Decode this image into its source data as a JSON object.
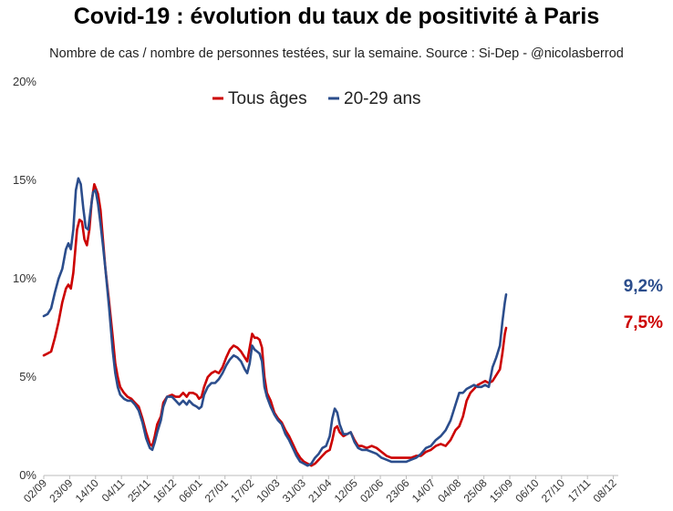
{
  "title": "Covid-19 : évolution du taux de positivité à Paris",
  "subtitle": "Nombre de cas / nombre de personnes testées, sur la semaine. Source : Si-Dep - @nicolasberrod",
  "chart_data": {
    "type": "line",
    "title": "Covid-19 : évolution du taux de positivité à Paris",
    "subtitle": "Nombre de cas / nombre de personnes testées, sur la semaine. Source : Si-Dep - @nicolasberrod",
    "xlabel": "",
    "ylabel": "",
    "ylim": [
      0,
      20
    ],
    "xlim": [
      0,
      466
    ],
    "grid": false,
    "legend_position": "top-center",
    "y_ticks": [
      {
        "value": 0,
        "label": "0%"
      },
      {
        "value": 5,
        "label": "5%"
      },
      {
        "value": 10,
        "label": "10%"
      },
      {
        "value": 15,
        "label": "15%"
      },
      {
        "value": 20,
        "label": "20%"
      }
    ],
    "x_ticks": [
      {
        "day": 0,
        "label": "02/09"
      },
      {
        "day": 21,
        "label": "23/09"
      },
      {
        "day": 42,
        "label": "14/10"
      },
      {
        "day": 63,
        "label": "04/11"
      },
      {
        "day": 84,
        "label": "25/11"
      },
      {
        "day": 105,
        "label": "16/12"
      },
      {
        "day": 126,
        "label": "06/01"
      },
      {
        "day": 147,
        "label": "27/01"
      },
      {
        "day": 168,
        "label": "17/02"
      },
      {
        "day": 189,
        "label": "10/03"
      },
      {
        "day": 210,
        "label": "31/03"
      },
      {
        "day": 231,
        "label": "21/04"
      },
      {
        "day": 252,
        "label": "12/05"
      },
      {
        "day": 273,
        "label": "02/06"
      },
      {
        "day": 294,
        "label": "23/06"
      },
      {
        "day": 315,
        "label": "14/07"
      },
      {
        "day": 336,
        "label": "04/08"
      },
      {
        "day": 357,
        "label": "25/08"
      },
      {
        "day": 378,
        "label": "15/09"
      },
      {
        "day": 399,
        "label": "06/10"
      },
      {
        "day": 420,
        "label": "27/10"
      },
      {
        "day": 441,
        "label": "17/11"
      },
      {
        "day": 462,
        "label": "08/12"
      }
    ],
    "series": [
      {
        "name": "Tous âges",
        "color": "#cc0000",
        "end_label": "7,5%",
        "points": [
          [
            0,
            6.1
          ],
          [
            3,
            6.2
          ],
          [
            6,
            6.3
          ],
          [
            9,
            7.0
          ],
          [
            12,
            7.8
          ],
          [
            15,
            8.8
          ],
          [
            18,
            9.5
          ],
          [
            20,
            9.7
          ],
          [
            22,
            9.5
          ],
          [
            24,
            10.3
          ],
          [
            27,
            12.5
          ],
          [
            29,
            13.0
          ],
          [
            31,
            12.9
          ],
          [
            33,
            12.0
          ],
          [
            35,
            11.7
          ],
          [
            37,
            12.5
          ],
          [
            39,
            14.0
          ],
          [
            41,
            14.8
          ],
          [
            44,
            14.3
          ],
          [
            46,
            13.5
          ],
          [
            48,
            12.0
          ],
          [
            50,
            10.5
          ],
          [
            53,
            8.8
          ],
          [
            56,
            7.0
          ],
          [
            58,
            5.7
          ],
          [
            60,
            5.0
          ],
          [
            62,
            4.5
          ],
          [
            65,
            4.2
          ],
          [
            68,
            4.0
          ],
          [
            71,
            3.9
          ],
          [
            74,
            3.7
          ],
          [
            77,
            3.5
          ],
          [
            80,
            2.9
          ],
          [
            83,
            2.2
          ],
          [
            86,
            1.6
          ],
          [
            88,
            1.5
          ],
          [
            90,
            2.0
          ],
          [
            92,
            2.6
          ],
          [
            95,
            3.0
          ],
          [
            97,
            3.7
          ],
          [
            100,
            4.0
          ],
          [
            104,
            4.1
          ],
          [
            107,
            4.0
          ],
          [
            110,
            4.0
          ],
          [
            113,
            4.2
          ],
          [
            116,
            4.0
          ],
          [
            118,
            4.2
          ],
          [
            121,
            4.2
          ],
          [
            124,
            4.1
          ],
          [
            126,
            3.9
          ],
          [
            128,
            4.0
          ],
          [
            130,
            4.5
          ],
          [
            133,
            5.0
          ],
          [
            136,
            5.2
          ],
          [
            139,
            5.3
          ],
          [
            142,
            5.2
          ],
          [
            145,
            5.5
          ],
          [
            148,
            6.0
          ],
          [
            151,
            6.4
          ],
          [
            154,
            6.6
          ],
          [
            157,
            6.5
          ],
          [
            160,
            6.3
          ],
          [
            163,
            6.0
          ],
          [
            165,
            5.8
          ],
          [
            167,
            6.5
          ],
          [
            169,
            7.2
          ],
          [
            171,
            7.0
          ],
          [
            173,
            7.0
          ],
          [
            175,
            6.9
          ],
          [
            177,
            6.5
          ],
          [
            179,
            5.0
          ],
          [
            181,
            4.2
          ],
          [
            184,
            3.8
          ],
          [
            187,
            3.2
          ],
          [
            190,
            2.9
          ],
          [
            193,
            2.7
          ],
          [
            196,
            2.3
          ],
          [
            199,
            2.0
          ],
          [
            202,
            1.6
          ],
          [
            205,
            1.2
          ],
          [
            208,
            0.9
          ],
          [
            211,
            0.7
          ],
          [
            214,
            0.6
          ],
          [
            217,
            0.5
          ],
          [
            220,
            0.6
          ],
          [
            223,
            0.8
          ],
          [
            226,
            1.0
          ],
          [
            229,
            1.2
          ],
          [
            232,
            1.3
          ],
          [
            234,
            1.8
          ],
          [
            236,
            2.4
          ],
          [
            238,
            2.5
          ],
          [
            240,
            2.2
          ],
          [
            243,
            2.0
          ],
          [
            246,
            2.1
          ],
          [
            249,
            2.2
          ],
          [
            252,
            1.8
          ],
          [
            255,
            1.5
          ],
          [
            258,
            1.5
          ],
          [
            262,
            1.4
          ],
          [
            266,
            1.5
          ],
          [
            270,
            1.4
          ],
          [
            274,
            1.2
          ],
          [
            278,
            1.0
          ],
          [
            282,
            0.9
          ],
          [
            286,
            0.9
          ],
          [
            290,
            0.9
          ],
          [
            294,
            0.9
          ],
          [
            298,
            0.9
          ],
          [
            302,
            1.0
          ],
          [
            306,
            1.0
          ],
          [
            310,
            1.2
          ],
          [
            314,
            1.3
          ],
          [
            318,
            1.5
          ],
          [
            322,
            1.6
          ],
          [
            326,
            1.5
          ],
          [
            330,
            1.8
          ],
          [
            334,
            2.3
          ],
          [
            337,
            2.5
          ],
          [
            340,
            3.0
          ],
          [
            343,
            3.8
          ],
          [
            346,
            4.2
          ],
          [
            349,
            4.4
          ],
          [
            352,
            4.6
          ],
          [
            355,
            4.7
          ],
          [
            358,
            4.8
          ],
          [
            361,
            4.7
          ],
          [
            364,
            4.8
          ],
          [
            367,
            5.1
          ],
          [
            370,
            5.4
          ],
          [
            372,
            6.2
          ],
          [
            374,
            7.2
          ],
          [
            375,
            7.5
          ]
        ]
      },
      {
        "name": "20-29 ans",
        "color": "#2b4d8c",
        "end_label": "9,2%",
        "points": [
          [
            0,
            8.1
          ],
          [
            3,
            8.2
          ],
          [
            6,
            8.5
          ],
          [
            9,
            9.3
          ],
          [
            12,
            10.0
          ],
          [
            15,
            10.5
          ],
          [
            18,
            11.5
          ],
          [
            20,
            11.8
          ],
          [
            22,
            11.5
          ],
          [
            24,
            12.5
          ],
          [
            26,
            14.5
          ],
          [
            28,
            15.1
          ],
          [
            30,
            14.8
          ],
          [
            32,
            13.6
          ],
          [
            34,
            12.6
          ],
          [
            36,
            12.5
          ],
          [
            38,
            13.5
          ],
          [
            40,
            14.4
          ],
          [
            42,
            14.5
          ],
          [
            44,
            13.8
          ],
          [
            46,
            12.8
          ],
          [
            48,
            11.7
          ],
          [
            50,
            10.5
          ],
          [
            53,
            8.5
          ],
          [
            56,
            6.3
          ],
          [
            58,
            5.2
          ],
          [
            60,
            4.5
          ],
          [
            62,
            4.1
          ],
          [
            65,
            3.9
          ],
          [
            68,
            3.8
          ],
          [
            71,
            3.8
          ],
          [
            74,
            3.6
          ],
          [
            77,
            3.3
          ],
          [
            80,
            2.7
          ],
          [
            83,
            1.9
          ],
          [
            86,
            1.4
          ],
          [
            88,
            1.3
          ],
          [
            90,
            1.7
          ],
          [
            92,
            2.2
          ],
          [
            95,
            2.8
          ],
          [
            97,
            3.5
          ],
          [
            100,
            4.0
          ],
          [
            104,
            4.0
          ],
          [
            107,
            3.8
          ],
          [
            110,
            3.6
          ],
          [
            113,
            3.8
          ],
          [
            116,
            3.6
          ],
          [
            118,
            3.8
          ],
          [
            121,
            3.6
          ],
          [
            124,
            3.5
          ],
          [
            126,
            3.4
          ],
          [
            128,
            3.5
          ],
          [
            130,
            4.1
          ],
          [
            133,
            4.5
          ],
          [
            136,
            4.7
          ],
          [
            139,
            4.7
          ],
          [
            142,
            4.9
          ],
          [
            145,
            5.2
          ],
          [
            148,
            5.6
          ],
          [
            151,
            5.9
          ],
          [
            154,
            6.1
          ],
          [
            157,
            6.0
          ],
          [
            160,
            5.8
          ],
          [
            163,
            5.4
          ],
          [
            165,
            5.2
          ],
          [
            167,
            5.7
          ],
          [
            169,
            6.6
          ],
          [
            171,
            6.4
          ],
          [
            173,
            6.3
          ],
          [
            175,
            6.2
          ],
          [
            177,
            5.8
          ],
          [
            179,
            4.5
          ],
          [
            181,
            4.0
          ],
          [
            184,
            3.5
          ],
          [
            187,
            3.1
          ],
          [
            190,
            2.8
          ],
          [
            193,
            2.6
          ],
          [
            196,
            2.1
          ],
          [
            199,
            1.8
          ],
          [
            202,
            1.4
          ],
          [
            205,
            1.0
          ],
          [
            208,
            0.7
          ],
          [
            211,
            0.6
          ],
          [
            214,
            0.5
          ],
          [
            217,
            0.6
          ],
          [
            220,
            0.9
          ],
          [
            223,
            1.1
          ],
          [
            226,
            1.4
          ],
          [
            229,
            1.5
          ],
          [
            232,
            2.0
          ],
          [
            234,
            2.9
          ],
          [
            236,
            3.4
          ],
          [
            238,
            3.2
          ],
          [
            240,
            2.6
          ],
          [
            243,
            2.1
          ],
          [
            246,
            2.1
          ],
          [
            249,
            2.2
          ],
          [
            252,
            1.7
          ],
          [
            255,
            1.4
          ],
          [
            258,
            1.3
          ],
          [
            262,
            1.3
          ],
          [
            266,
            1.2
          ],
          [
            270,
            1.1
          ],
          [
            274,
            0.9
          ],
          [
            278,
            0.8
          ],
          [
            282,
            0.7
          ],
          [
            286,
            0.7
          ],
          [
            290,
            0.7
          ],
          [
            294,
            0.7
          ],
          [
            298,
            0.8
          ],
          [
            302,
            0.9
          ],
          [
            306,
            1.1
          ],
          [
            310,
            1.4
          ],
          [
            314,
            1.5
          ],
          [
            318,
            1.8
          ],
          [
            322,
            2.0
          ],
          [
            326,
            2.3
          ],
          [
            330,
            2.8
          ],
          [
            334,
            3.6
          ],
          [
            337,
            4.2
          ],
          [
            340,
            4.2
          ],
          [
            343,
            4.4
          ],
          [
            346,
            4.5
          ],
          [
            349,
            4.6
          ],
          [
            352,
            4.5
          ],
          [
            355,
            4.5
          ],
          [
            358,
            4.6
          ],
          [
            361,
            4.5
          ],
          [
            364,
            5.5
          ],
          [
            367,
            6.0
          ],
          [
            370,
            6.6
          ],
          [
            372,
            7.8
          ],
          [
            374,
            8.8
          ],
          [
            375,
            9.2
          ]
        ]
      }
    ]
  }
}
